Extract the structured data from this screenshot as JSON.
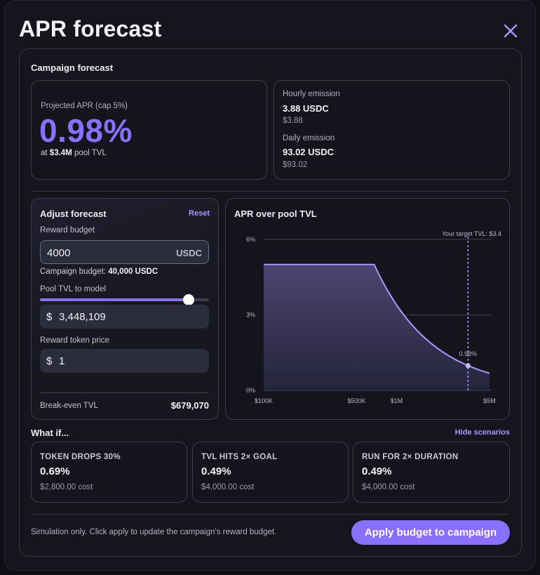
{
  "header": {
    "title": "APR forecast"
  },
  "forecast": {
    "section_title": "Campaign forecast",
    "projected_label": "Projected APR (cap 5%)",
    "projected_value": "0.98%",
    "tvl_prefix": "at",
    "tvl_value": "$3.4M",
    "tvl_suffix": "pool TVL",
    "hourly_label": "Hourly emission",
    "hourly_value": "3.88 USDC",
    "hourly_usd": "$3.88",
    "daily_label": "Daily emission",
    "daily_value": "93.02 USDC",
    "daily_usd": "$93.02"
  },
  "adjust": {
    "title": "Adjust forecast",
    "reset_label": "Reset",
    "budget_label": "Reward budget",
    "budget_value": "4000",
    "budget_unit": "USDC",
    "campaign_budget_label": "Campaign budget:",
    "campaign_budget_value": "40,000 USDC",
    "tvl_label": "Pool TVL to model",
    "tvl_slider_fraction": 0.88,
    "tvl_currency": "$",
    "tvl_value": "3,448,109",
    "price_label": "Reward token price",
    "price_currency": "$",
    "price_value": "1",
    "breakeven_label": "Break-even TVL",
    "breakeven_value": "$679,070"
  },
  "chart": {
    "title": "APR over pool TVL",
    "target_label": "Your target TVL: $3.4",
    "point_label": "0.98%"
  },
  "chart_data": {
    "type": "area",
    "x_scale": "log",
    "x_unit": "TVL (USD)",
    "y_unit": "APR (%)",
    "xlim": [
      100000,
      5000000
    ],
    "ylim": [
      0,
      6
    ],
    "x_ticks": [
      "$100K",
      "$500K",
      "$1M",
      "$5M"
    ],
    "y_ticks": [
      "6%",
      "3%",
      "0%"
    ],
    "x": [
      100000,
      300000,
      500000,
      679070,
      800000,
      1000000,
      1500000,
      2000000,
      2500000,
      3000000,
      3448109,
      4000000,
      5000000
    ],
    "values": [
      5,
      5,
      5,
      5,
      4.24,
      3.39,
      2.26,
      1.7,
      1.36,
      1.13,
      0.98,
      0.85,
      0.68
    ],
    "annotations": [
      {
        "x": 3448109,
        "y": 0.98,
        "label": "0.98%"
      }
    ],
    "target_x": 3448109
  },
  "whatif": {
    "title": "What if...",
    "hide_label": "Hide scenarios",
    "scenarios": [
      {
        "title": "TOKEN DROPS 30%",
        "apr": "0.69%",
        "cost": "$2,800.00 cost"
      },
      {
        "title": "TVL HITS 2× GOAL",
        "apr": "0.49%",
        "cost": "$4,000.00 cost"
      },
      {
        "title": "RUN FOR 2× DURATION",
        "apr": "0.49%",
        "cost": "$4,000.00 cost"
      }
    ]
  },
  "footer": {
    "note": "Simulation only. Click apply to update the campaign's reward budget.",
    "apply_label": "Apply budget to campaign"
  },
  "colors": {
    "accent": "#8a70ff",
    "background": "#15161d",
    "border": "#34364a"
  }
}
